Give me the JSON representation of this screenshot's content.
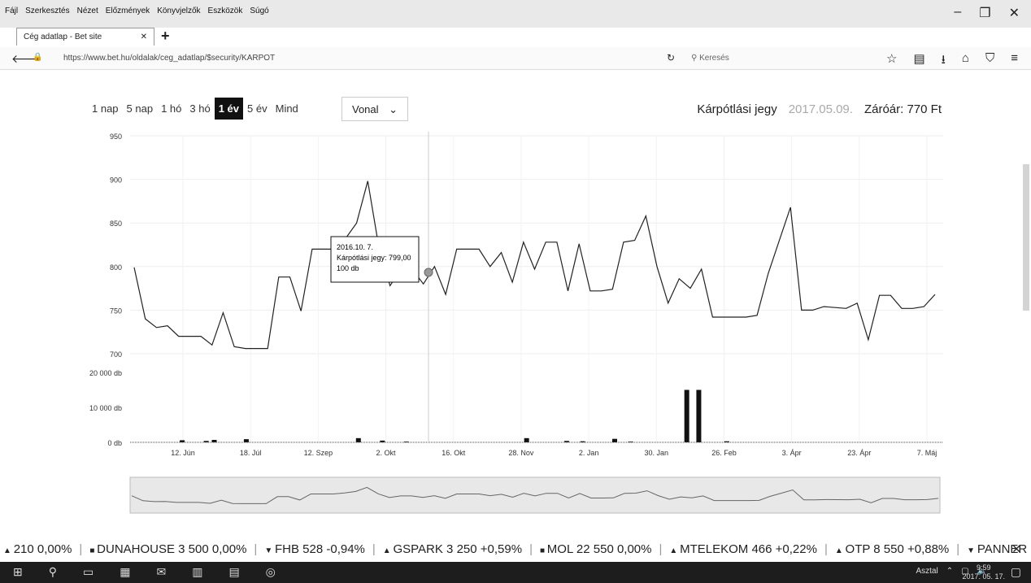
{
  "browser": {
    "menu": [
      "Fájl",
      "Szerkesztés",
      "Nézet",
      "Előzmények",
      "Könyvjelzők",
      "Eszközök",
      "Súgó"
    ],
    "tab_title": "Cég adatlap - Bet site",
    "url": "https://www.bet.hu/oldalak/ceg_adatlap/$security/KARPOT",
    "search_placeholder": "Keresés"
  },
  "controls": {
    "ranges": [
      "1 nap",
      "5 nap",
      "1 hó",
      "3 hó",
      "1 év",
      "5 év",
      "Mind"
    ],
    "active_range": "1 év",
    "chart_type": "Vonal"
  },
  "info": {
    "name": "Kárpótlási jegy",
    "date": "2017.05.09.",
    "close": "Záróár: 770 Ft"
  },
  "tooltip": {
    "line1": "2016.10. 7.",
    "line2": "Kárpótlási jegy: 799,00",
    "line3": "100 db"
  },
  "chart_data": {
    "type": "line",
    "price": {
      "ylim": [
        700,
        950
      ],
      "yticks": [
        "950",
        "900",
        "850",
        "800",
        "750",
        "700"
      ],
      "values": [
        799,
        740,
        730,
        732,
        720,
        720,
        720,
        710,
        747,
        708,
        706,
        706,
        706,
        788,
        788,
        749,
        820,
        820,
        820,
        832,
        850,
        898,
        822,
        778,
        797,
        797,
        780,
        800,
        768,
        820,
        820,
        820,
        800,
        816,
        782,
        828,
        797,
        828,
        828,
        772,
        826,
        772,
        772,
        774,
        828,
        830,
        858,
        800,
        758,
        786,
        775,
        797,
        742,
        742,
        742,
        742,
        744,
        792,
        830,
        868,
        750,
        750,
        754,
        753,
        752,
        758,
        716,
        767,
        767,
        752,
        752,
        754,
        768
      ]
    },
    "volume": {
      "ylim": [
        0,
        20000
      ],
      "yticks": [
        "20 000 db",
        "10 000 db",
        "0 db"
      ],
      "bars": [
        [
          0.06,
          600
        ],
        [
          0.09,
          400
        ],
        [
          0.1,
          700
        ],
        [
          0.14,
          900
        ],
        [
          0.28,
          1200
        ],
        [
          0.31,
          500
        ],
        [
          0.34,
          200
        ],
        [
          0.49,
          1200
        ],
        [
          0.54,
          400
        ],
        [
          0.56,
          300
        ],
        [
          0.6,
          1000
        ],
        [
          0.62,
          200
        ],
        [
          0.69,
          15000
        ],
        [
          0.705,
          15000
        ],
        [
          0.74,
          300
        ]
      ]
    },
    "xticks": [
      "12. Jún",
      "18. Júl",
      "12. Szep",
      "2. Okt",
      "16. Okt",
      "28. Nov",
      "2. Jan",
      "30. Jan",
      "26. Feb",
      "3. Ápr",
      "23. Ápr",
      "7. Máj"
    ]
  },
  "ticker": [
    {
      "sym": "▲",
      "text": "210 0,00%"
    },
    {
      "sym": "■",
      "text": "DUNAHOUSE 3 500 0,00%"
    },
    {
      "sym": "▼",
      "text": "FHB 528 -0,94%"
    },
    {
      "sym": "▲",
      "text": "GSPARK 3 250 +0,59%"
    },
    {
      "sym": "■",
      "text": "MOL 22 550 0,00%"
    },
    {
      "sym": "▲",
      "text": "MTELEKOM 466 +0,22%"
    },
    {
      "sym": "▲",
      "text": "OTP 8 550 +0,88%"
    },
    {
      "sym": "▼",
      "text": "PANNER"
    }
  ],
  "taskbar": {
    "desktop_label": "Asztal",
    "time": "9:59",
    "date": "2017. 05. 17."
  }
}
